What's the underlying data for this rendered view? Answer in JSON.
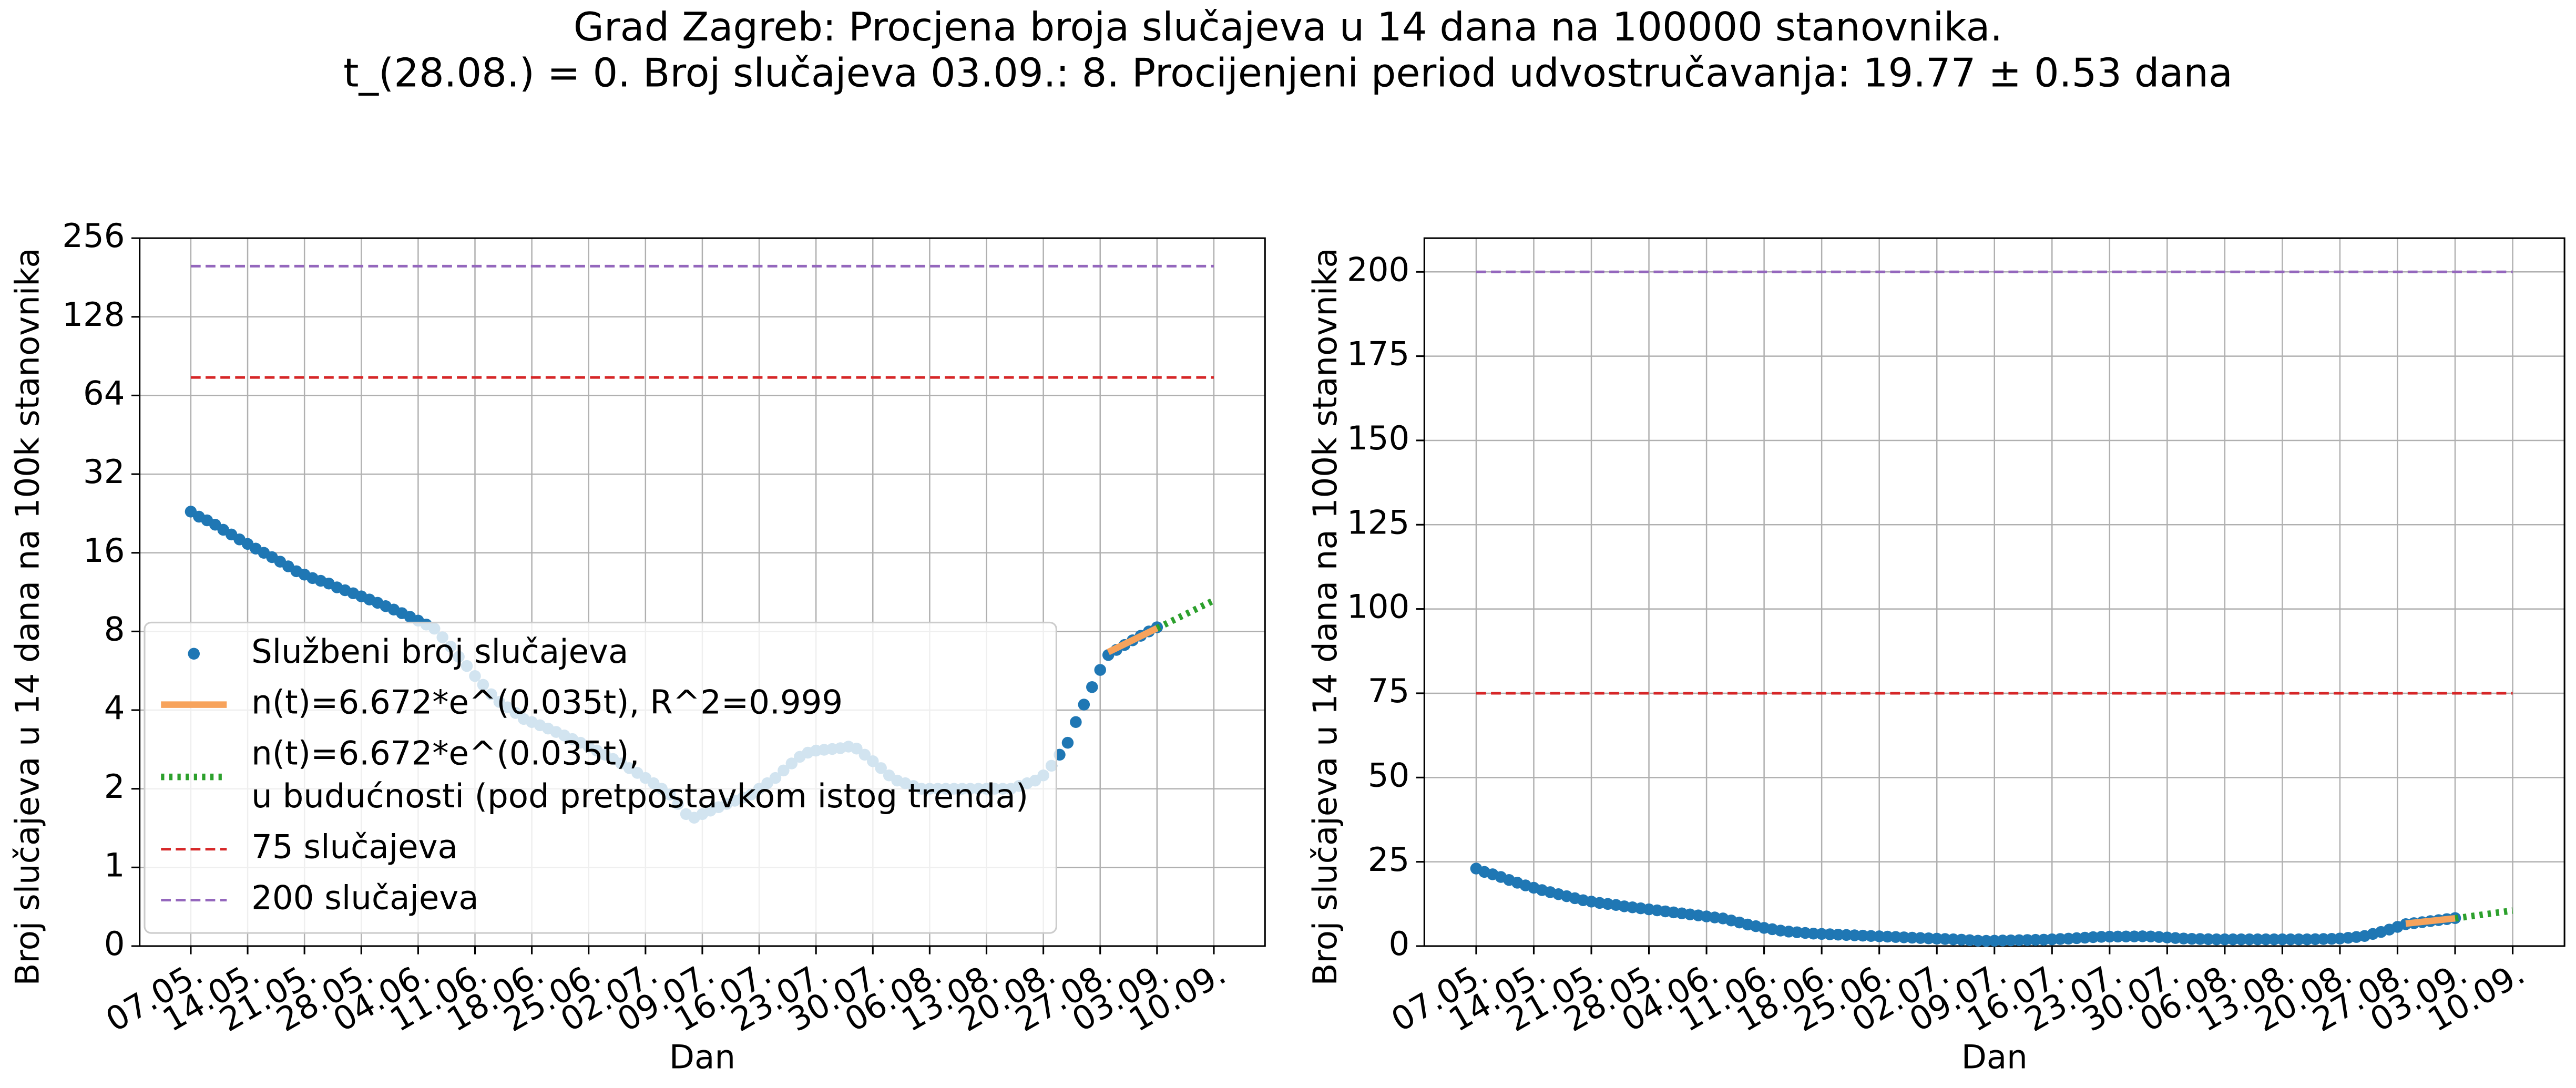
{
  "suptitle": [
    "Grad Zagreb: Procjena broja slučajeva u 14 dana na 100000 stanovnika.",
    "t_(28.08.) = 0. Broj slučajeva 03.09.: 8. Procijenjeni period udvostručavanja: 19.77 ± 0.53 dana"
  ],
  "chart_data": [
    {
      "type": "line",
      "y_scale": "symlog2",
      "grid": true,
      "legend": "lower left",
      "xlabel": "Dan",
      "ylabel": "Broj slučajeva u 14 dana na 100k stanovnika",
      "ylim": [
        0,
        256
      ],
      "yticks": [
        0,
        1,
        2,
        4,
        8,
        16,
        32,
        64,
        128,
        256
      ],
      "xticks": [
        "07.05.",
        "14.05.",
        "21.05.",
        "28.05.",
        "04.06.",
        "11.06.",
        "18.06.",
        "25.06.",
        "02.07.",
        "09.07.",
        "16.07.",
        "23.07.",
        "30.07.",
        "06.08.",
        "13.08.",
        "20.08.",
        "27.08.",
        "03.09.",
        "10.09."
      ],
      "series": [
        {
          "name": "Službeni broj slučajeva",
          "color": "#1f77b4",
          "style": "markers",
          "x": [
            "07.05.",
            "08.05.",
            "09.05.",
            "10.05.",
            "11.05.",
            "12.05.",
            "13.05.",
            "14.05.",
            "15.05.",
            "16.05.",
            "17.05.",
            "18.05.",
            "19.05.",
            "20.05.",
            "21.05.",
            "22.05.",
            "23.05.",
            "24.05.",
            "25.05.",
            "26.05.",
            "27.05.",
            "28.05.",
            "29.05.",
            "30.05.",
            "31.05.",
            "01.06.",
            "02.06.",
            "03.06.",
            "04.06.",
            "05.06.",
            "06.06.",
            "07.06.",
            "08.06.",
            "09.06.",
            "10.06.",
            "11.06.",
            "12.06.",
            "13.06.",
            "14.06.",
            "15.06.",
            "16.06.",
            "17.06.",
            "18.06.",
            "19.06.",
            "20.06.",
            "21.06.",
            "22.06.",
            "23.06.",
            "24.06.",
            "25.06.",
            "26.06.",
            "27.06.",
            "28.06.",
            "29.06.",
            "30.06.",
            "01.07.",
            "02.07.",
            "03.07.",
            "04.07.",
            "05.07.",
            "06.07.",
            "07.07.",
            "08.07.",
            "09.07.",
            "10.07.",
            "11.07.",
            "12.07.",
            "13.07.",
            "14.07.",
            "15.07.",
            "16.07.",
            "17.07.",
            "18.07.",
            "19.07.",
            "20.07.",
            "21.07.",
            "22.07.",
            "23.07.",
            "24.07.",
            "25.07.",
            "26.07.",
            "27.07.",
            "28.07.",
            "29.07.",
            "30.07.",
            "31.07.",
            "01.08.",
            "02.08.",
            "03.08.",
            "04.08.",
            "05.08.",
            "06.08.",
            "07.08.",
            "08.08.",
            "09.08.",
            "10.08.",
            "11.08.",
            "12.08.",
            "13.08.",
            "14.08.",
            "15.08.",
            "16.08.",
            "17.08.",
            "18.08.",
            "19.08.",
            "20.08.",
            "21.08.",
            "22.08.",
            "23.08.",
            "24.08.",
            "25.08.",
            "26.08.",
            "27.08.",
            "28.08.",
            "29.08.",
            "30.08.",
            "31.08.",
            "01.09.",
            "02.09.",
            "03.09."
          ],
          "values": [
            23,
            22,
            21.3,
            20.5,
            19.6,
            18.8,
            18,
            17.3,
            16.6,
            16,
            15.4,
            14.8,
            14.2,
            13.6,
            13.2,
            12.8,
            12.5,
            12.2,
            11.8,
            11.5,
            11.2,
            10.9,
            10.6,
            10.3,
            10.0,
            9.7,
            9.4,
            9.1,
            8.8,
            8.5,
            8.2,
            7.6,
            7.0,
            6.4,
            5.9,
            5.4,
            5.0,
            4.6,
            4.3,
            4.1,
            3.9,
            3.7,
            3.6,
            3.5,
            3.4,
            3.3,
            3.2,
            3.1,
            3.0,
            2.9,
            2.8,
            2.7,
            2.6,
            2.5,
            2.4,
            2.3,
            2.2,
            2.1,
            2.0,
            1.9,
            1.75,
            1.6,
            1.55,
            1.6,
            1.65,
            1.7,
            1.75,
            1.8,
            1.85,
            1.9,
            2.0,
            2.1,
            2.2,
            2.35,
            2.5,
            2.65,
            2.75,
            2.8,
            2.82,
            2.84,
            2.86,
            2.9,
            2.85,
            2.7,
            2.55,
            2.4,
            2.25,
            2.15,
            2.1,
            2.05,
            2.0,
            2.0,
            2.0,
            2.0,
            2.0,
            2.0,
            2.0,
            2.0,
            2.0,
            2.0,
            2.0,
            2.0,
            2.05,
            2.1,
            2.15,
            2.25,
            2.45,
            2.7,
            3.0,
            3.6,
            4.2,
            4.9,
            5.7,
            6.5,
            6.8,
            7.1,
            7.4,
            7.7,
            8.0,
            8.3
          ]
        },
        {
          "name": "n(t)=6.672*e^(0.035t), R^2=0.999",
          "color": "#f7a35c",
          "style": "solid",
          "x": [
            "28.08.",
            "03.09."
          ],
          "values": [
            6.672,
            8.23
          ]
        },
        {
          "name": [
            "n(t)=6.672*e^(0.035t),",
            "u budućnosti (pod pretpostavkom istog trenda)"
          ],
          "color": "#2ca02c",
          "style": "dotted",
          "x": [
            "03.09.",
            "10.09."
          ],
          "values": [
            8.23,
            10.52
          ]
        },
        {
          "name": "75 slučajeva",
          "color": "#d62728",
          "style": "dashed",
          "x": [
            "07.05.",
            "10.09."
          ],
          "values": [
            75,
            75
          ]
        },
        {
          "name": "200 slučajeva",
          "color": "#9467bd",
          "style": "dashed",
          "x": [
            "07.05.",
            "10.09."
          ],
          "values": [
            200,
            200
          ]
        }
      ]
    },
    {
      "type": "line",
      "grid": true,
      "xlabel": "Dan",
      "ylabel": "Broj slučajeva u 14 dana na 100k stanovnika",
      "ylim": [
        0,
        210
      ],
      "yticks": [
        0,
        25,
        50,
        75,
        100,
        125,
        150,
        175,
        200
      ],
      "xticks": [
        "07.05.",
        "14.05.",
        "21.05.",
        "28.05.",
        "04.06.",
        "11.06.",
        "18.06.",
        "25.06.",
        "02.07.",
        "09.07.",
        "16.07.",
        "23.07.",
        "30.07.",
        "06.08.",
        "13.08.",
        "20.08.",
        "27.08.",
        "03.09.",
        "10.09."
      ],
      "series": [
        {
          "color": "#1f77b4",
          "style": "markers",
          "x": [
            "07.05.",
            "08.05.",
            "09.05.",
            "10.05.",
            "11.05.",
            "12.05.",
            "13.05.",
            "14.05.",
            "15.05.",
            "16.05.",
            "17.05.",
            "18.05.",
            "19.05.",
            "20.05.",
            "21.05.",
            "22.05.",
            "23.05.",
            "24.05.",
            "25.05.",
            "26.05.",
            "27.05.",
            "28.05.",
            "29.05.",
            "30.05.",
            "31.05.",
            "01.06.",
            "02.06.",
            "03.06.",
            "04.06.",
            "05.06.",
            "06.06.",
            "07.06.",
            "08.06.",
            "09.06.",
            "10.06.",
            "11.06.",
            "12.06.",
            "13.06.",
            "14.06.",
            "15.06.",
            "16.06.",
            "17.06.",
            "18.06.",
            "19.06.",
            "20.06.",
            "21.06.",
            "22.06.",
            "23.06.",
            "24.06.",
            "25.06.",
            "26.06.",
            "27.06.",
            "28.06.",
            "29.06.",
            "30.06.",
            "01.07.",
            "02.07.",
            "03.07.",
            "04.07.",
            "05.07.",
            "06.07.",
            "07.07.",
            "08.07.",
            "09.07.",
            "10.07.",
            "11.07.",
            "12.07.",
            "13.07.",
            "14.07.",
            "15.07.",
            "16.07.",
            "17.07.",
            "18.07.",
            "19.07.",
            "20.07.",
            "21.07.",
            "22.07.",
            "23.07.",
            "24.07.",
            "25.07.",
            "26.07.",
            "27.07.",
            "28.07.",
            "29.07.",
            "30.07.",
            "31.07.",
            "01.08.",
            "02.08.",
            "03.08.",
            "04.08.",
            "05.08.",
            "06.08.",
            "07.08.",
            "08.08.",
            "09.08.",
            "10.08.",
            "11.08.",
            "12.08.",
            "13.08.",
            "14.08.",
            "15.08.",
            "16.08.",
            "17.08.",
            "18.08.",
            "19.08.",
            "20.08.",
            "21.08.",
            "22.08.",
            "23.08.",
            "24.08.",
            "25.08.",
            "26.08.",
            "27.08.",
            "28.08.",
            "29.08.",
            "30.08.",
            "31.08.",
            "01.09.",
            "02.09.",
            "03.09."
          ],
          "values": [
            23,
            22,
            21.3,
            20.5,
            19.6,
            18.8,
            18,
            17.3,
            16.6,
            16,
            15.4,
            14.8,
            14.2,
            13.6,
            13.2,
            12.8,
            12.5,
            12.2,
            11.8,
            11.5,
            11.2,
            10.9,
            10.6,
            10.3,
            10.0,
            9.7,
            9.4,
            9.1,
            8.8,
            8.5,
            8.2,
            7.6,
            7.0,
            6.4,
            5.9,
            5.4,
            5.0,
            4.6,
            4.3,
            4.1,
            3.9,
            3.7,
            3.6,
            3.5,
            3.4,
            3.3,
            3.2,
            3.1,
            3.0,
            2.9,
            2.8,
            2.7,
            2.6,
            2.5,
            2.4,
            2.3,
            2.2,
            2.1,
            2.0,
            1.9,
            1.75,
            1.6,
            1.55,
            1.6,
            1.65,
            1.7,
            1.75,
            1.8,
            1.85,
            1.9,
            2.0,
            2.1,
            2.2,
            2.35,
            2.5,
            2.65,
            2.75,
            2.8,
            2.82,
            2.84,
            2.86,
            2.9,
            2.85,
            2.7,
            2.55,
            2.4,
            2.25,
            2.15,
            2.1,
            2.05,
            2.0,
            2.0,
            2.0,
            2.0,
            2.0,
            2.0,
            2.0,
            2.0,
            2.0,
            2.0,
            2.0,
            2.0,
            2.05,
            2.1,
            2.15,
            2.25,
            2.45,
            2.7,
            3.0,
            3.6,
            4.2,
            4.9,
            5.7,
            6.5,
            6.8,
            7.1,
            7.4,
            7.7,
            8.0,
            8.3
          ]
        },
        {
          "color": "#f7a35c",
          "style": "solid",
          "x": [
            "28.08.",
            "03.09."
          ],
          "values": [
            6.672,
            8.23
          ]
        },
        {
          "color": "#2ca02c",
          "style": "dotted",
          "x": [
            "03.09.",
            "10.09."
          ],
          "values": [
            8.23,
            10.52
          ]
        },
        {
          "color": "#d62728",
          "style": "dashed",
          "x": [
            "07.05.",
            "10.09."
          ],
          "values": [
            75,
            75
          ]
        },
        {
          "color": "#9467bd",
          "style": "dashed",
          "x": [
            "07.05.",
            "10.09."
          ],
          "values": [
            200,
            200
          ]
        }
      ]
    }
  ]
}
